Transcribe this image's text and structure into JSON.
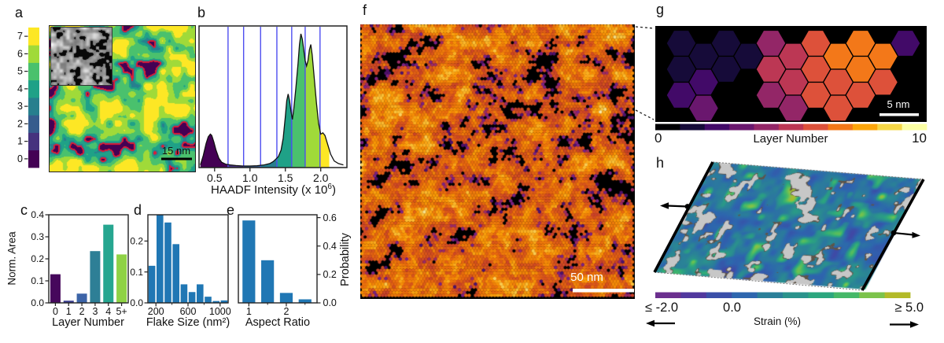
{
  "panels": {
    "a": {
      "label": "a",
      "scale_bar": "15 nm",
      "colorbar_ticks": [
        "0",
        "1",
        "2",
        "3",
        "4",
        "5",
        "6",
        "7"
      ]
    },
    "b": {
      "label": "b",
      "xlabel_prefix": "HAADF Intensity (x 10",
      "xlabel_sup": "6",
      "xlabel_suffix": ")"
    },
    "c": {
      "label": "c",
      "ylabel": "Norm. Area",
      "xlabel": "Layer Number"
    },
    "d": {
      "label": "d",
      "xlabel": "Flake Size (nm²)"
    },
    "e": {
      "label": "e",
      "xlabel": "Aspect Ratio",
      "ylabel_right": "Probability"
    },
    "f": {
      "label": "f",
      "scale_bar": "50 nm"
    },
    "g": {
      "label": "g",
      "scale_bar": "5 nm",
      "colorbar_label": "Layer Number",
      "colorbar_tick_min": "0",
      "colorbar_tick_max": "10"
    },
    "h": {
      "label": "h",
      "tick_left": "≤ -2.0",
      "tick_mid": "0.0",
      "tick_right": "≥ 5.0",
      "colorbar_label": "Strain (%)"
    }
  },
  "chart_data": [
    {
      "id": "b-haadf-histogram",
      "type": "area",
      "xlabel": "HAADF Intensity (x 10^6)",
      "xlim": [
        0.28,
        2.37
      ],
      "xticks": [
        0.5,
        1.0,
        1.5,
        2.0
      ],
      "xtick_labels": [
        "0.5",
        "1.0",
        "1.5",
        "2.0"
      ],
      "boundaries": [
        0.69,
        0.91,
        1.15,
        1.38,
        1.59,
        1.78,
        1.99
      ],
      "fill_end": 2.12,
      "boundary_color": "#4e4ef0",
      "segment_colors": [
        "#440154",
        "#46327e",
        "#365c8d",
        "#277f8e",
        "#1fa187",
        "#4ac16d",
        "#a0da39",
        "#fde725"
      ],
      "x": [
        0.3,
        0.34,
        0.38,
        0.41,
        0.44,
        0.46,
        0.49,
        0.52,
        0.56,
        0.6,
        0.66,
        0.72,
        0.8,
        0.9,
        1.0,
        1.1,
        1.2,
        1.28,
        1.33,
        1.36,
        1.4,
        1.44,
        1.47,
        1.5,
        1.52,
        1.54,
        1.56,
        1.58,
        1.6,
        1.62,
        1.65,
        1.68,
        1.7,
        1.72,
        1.74,
        1.76,
        1.78,
        1.8,
        1.82,
        1.84,
        1.86,
        1.88,
        1.91,
        1.94,
        1.97,
        2.0,
        2.03,
        2.06,
        2.1,
        2.14,
        2.19,
        2.25,
        2.32
      ],
      "y": [
        0.02,
        0.09,
        0.18,
        0.23,
        0.25,
        0.24,
        0.19,
        0.13,
        0.07,
        0.04,
        0.025,
        0.02,
        0.015,
        0.012,
        0.012,
        0.014,
        0.02,
        0.03,
        0.045,
        0.06,
        0.08,
        0.13,
        0.22,
        0.38,
        0.5,
        0.55,
        0.5,
        0.42,
        0.36,
        0.44,
        0.6,
        0.78,
        0.92,
        1.0,
        0.96,
        0.88,
        0.8,
        0.76,
        0.8,
        0.88,
        0.92,
        0.84,
        0.66,
        0.48,
        0.33,
        0.25,
        0.26,
        0.24,
        0.17,
        0.1,
        0.05,
        0.03,
        0.02
      ]
    },
    {
      "id": "c-layer-area",
      "type": "bar",
      "xlabel": "Layer Number",
      "ylabel": "Norm. Area",
      "categories": [
        "0",
        "1",
        "2",
        "3",
        "4",
        "5+"
      ],
      "values": [
        0.13,
        0.01,
        0.042,
        0.235,
        0.355,
        0.22
      ],
      "bar_colors": [
        "#46085c",
        "#3b3f8f",
        "#3c64a8",
        "#2e7f96",
        "#26a690",
        "#8fd245"
      ],
      "ylim": [
        0,
        0.4
      ],
      "yticks": [
        0,
        0.1,
        0.2,
        0.3,
        0.4
      ],
      "ytick_labels": [
        "0.0",
        "0.1",
        "0.2",
        "0.3",
        "0.4"
      ]
    },
    {
      "id": "d-flake-size",
      "type": "bar",
      "xlabel": "Flake Size (nm²)",
      "bins_start": 100,
      "bin_width": 100,
      "values": [
        0.12,
        0.295,
        0.26,
        0.19,
        0.06,
        0.035,
        0.06,
        0.02,
        0.006,
        0.008
      ],
      "bar_color": "#2077b4",
      "xlim": [
        100,
        1100
      ],
      "xticks": [
        200,
        600,
        1000
      ],
      "xtick_labels": [
        "200",
        "600",
        "1000"
      ],
      "xticks_minor": [
        400,
        800
      ],
      "ylim": [
        0,
        0.285
      ],
      "yticks": [
        0,
        0.1,
        0.2
      ],
      "ytick_labels": [
        "0.0",
        "0.1",
        "0.2"
      ]
    },
    {
      "id": "e-aspect-ratio",
      "type": "bar",
      "xlabel": "Aspect Ratio",
      "ylabel_right": "Probability",
      "x": [
        1,
        1.5,
        2,
        2.5
      ],
      "bar_width": 0.34,
      "values": [
        0.58,
        0.3,
        0.07,
        0.025
      ],
      "bar_color": "#2077b4",
      "xlim": [
        0.72,
        2.82
      ],
      "xticks": [
        1,
        2
      ],
      "xtick_labels": [
        "1",
        "2"
      ],
      "xticks_minor": [
        1.5,
        2.5
      ],
      "ylim": [
        0,
        0.62
      ],
      "yticks": [
        0,
        0.2,
        0.4,
        0.6
      ],
      "ytick_labels": [
        "0.0",
        "0.2",
        "0.4",
        "0.6"
      ]
    },
    {
      "id": "g-layer-hexmap",
      "type": "hexmap",
      "colorbar_label": "Layer Number",
      "colorbar_range": [
        0,
        10
      ],
      "hex_size": 19,
      "palette": [
        "#000004",
        "#160b39",
        "#420a68",
        "#6a176e",
        "#932667",
        "#bc3754",
        "#dd513a",
        "#f37819",
        "#fca50a",
        "#f6d746",
        "#fcffa4"
      ],
      "hexes": [
        {
          "x": 33,
          "y": 22,
          "layer": 1
        },
        {
          "x": 90,
          "y": 22,
          "layer": 1
        },
        {
          "x": 61.5,
          "y": 38.5,
          "layer": 1
        },
        {
          "x": 118.5,
          "y": 38.5,
          "layer": 1
        },
        {
          "x": 33,
          "y": 55,
          "layer": 1
        },
        {
          "x": 90,
          "y": 55,
          "layer": 1
        },
        {
          "x": 61.5,
          "y": 71.5,
          "layer": 2
        },
        {
          "x": 33,
          "y": 88,
          "layer": 2
        },
        {
          "x": 61.5,
          "y": 104.5,
          "layer": 3
        },
        {
          "x": 147,
          "y": 22,
          "layer": 4
        },
        {
          "x": 204,
          "y": 22,
          "layer": 6
        },
        {
          "x": 261,
          "y": 22,
          "layer": 7
        },
        {
          "x": 318,
          "y": 22,
          "layer": 2
        },
        {
          "x": 175.5,
          "y": 38.5,
          "layer": 5
        },
        {
          "x": 232.5,
          "y": 38.5,
          "layer": 7
        },
        {
          "x": 289.5,
          "y": 38.5,
          "layer": 7
        },
        {
          "x": 147,
          "y": 55,
          "layer": 5
        },
        {
          "x": 204,
          "y": 55,
          "layer": 6
        },
        {
          "x": 261,
          "y": 55,
          "layer": 7
        },
        {
          "x": 175.5,
          "y": 71.5,
          "layer": 5
        },
        {
          "x": 232.5,
          "y": 71.5,
          "layer": 6
        },
        {
          "x": 289.5,
          "y": 71.5,
          "layer": 6
        },
        {
          "x": 147,
          "y": 88,
          "layer": 4
        },
        {
          "x": 204,
          "y": 88,
          "layer": 6
        },
        {
          "x": 261,
          "y": 88,
          "layer": 6
        },
        {
          "x": 175.5,
          "y": 104.5,
          "layer": 4
        },
        {
          "x": 232.5,
          "y": 104.5,
          "layer": 6
        }
      ]
    },
    {
      "id": "h-strain-colorbar",
      "type": "colorbar",
      "label": "Strain (%)",
      "range_labels": [
        "≤ -2.0",
        "0.0",
        "≥ 5.0"
      ],
      "colors": [
        "#6b2f8e",
        "#51389e",
        "#3a4fa8",
        "#2d66ae",
        "#2a7f99",
        "#2a938c",
        "#2ba67e",
        "#45b868",
        "#7cc34b",
        "#b3ba28"
      ]
    },
    {
      "id": "a-layer-map",
      "type": "map",
      "colorbar_ticks": [
        0,
        1,
        2,
        3,
        4,
        5,
        6,
        7
      ],
      "palette": [
        "#440154",
        "#46327e",
        "#365c8d",
        "#277f8e",
        "#1fa187",
        "#4ac16d",
        "#a0da39",
        "#fde725"
      ],
      "void_outline_color": "#dd1c36"
    }
  ]
}
